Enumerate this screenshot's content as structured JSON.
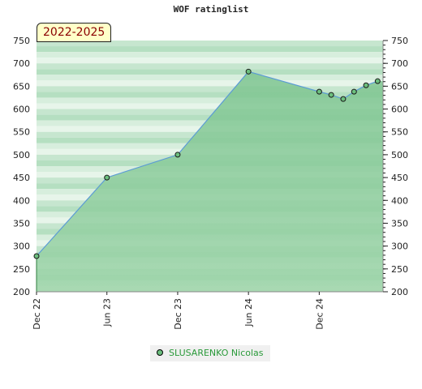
{
  "chart_data": {
    "type": "area",
    "title": "WOF ratinglist",
    "badge": "2022-2025",
    "ylim": [
      200,
      750
    ],
    "yticks": [
      200,
      250,
      300,
      350,
      400,
      450,
      500,
      550,
      600,
      650,
      700,
      750
    ],
    "xticks": [
      {
        "label": "Dec 22",
        "x": "2022-12-01"
      },
      {
        "label": "Jun 23",
        "x": "2023-06-01"
      },
      {
        "label": "Dec 23",
        "x": "2023-12-01"
      },
      {
        "label": "Jun 24",
        "x": "2024-06-01"
      },
      {
        "label": "Dec 24",
        "x": "2024-12-01"
      }
    ],
    "xlim": [
      "2022-12-01",
      "2025-05-15"
    ],
    "grid": true,
    "legend_position": "bottom",
    "series": [
      {
        "name": "SLUSARENKO Nicolas",
        "color": "#6cbf7e",
        "line_color": "#5b9bd5",
        "points": [
          {
            "x": "2022-12-01",
            "y": 278
          },
          {
            "x": "2023-06-01",
            "y": 450
          },
          {
            "x": "2023-12-01",
            "y": 500
          },
          {
            "x": "2024-06-01",
            "y": 682
          },
          {
            "x": "2024-12-01",
            "y": 638
          },
          {
            "x": "2025-01-01",
            "y": 631
          },
          {
            "x": "2025-02-01",
            "y": 622
          },
          {
            "x": "2025-03-01",
            "y": 638
          },
          {
            "x": "2025-04-01",
            "y": 652
          },
          {
            "x": "2025-05-01",
            "y": 661
          }
        ]
      }
    ]
  }
}
